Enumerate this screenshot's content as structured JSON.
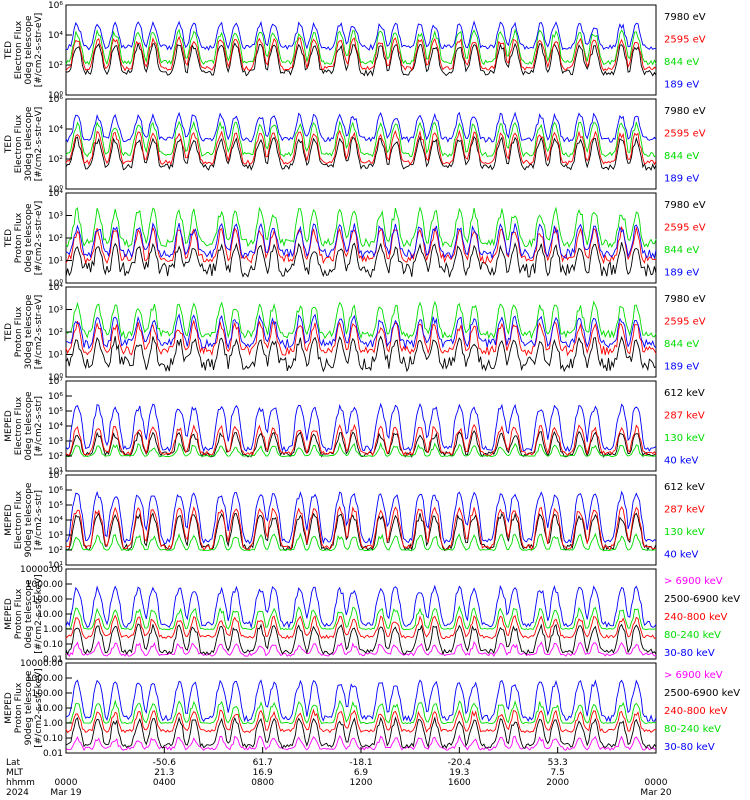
{
  "colors": {
    "black": "#000000",
    "red": "#ff0000",
    "green": "#00dd00",
    "blue": "#0000ff",
    "magenta": "#ff00ff"
  },
  "chart_data": {
    "type": "line",
    "panels": [
      {
        "ylabel_lines": [
          "TED",
          "Electron Flux",
          "0deg telescope",
          "[#/cm2-s-str-eV]"
        ],
        "scale": "log",
        "ylim": [
          1,
          1000000
        ],
        "ticks": [
          {
            "v": 1,
            "label": "10⁰"
          },
          {
            "v": 100,
            "label": "10²"
          },
          {
            "v": 10000,
            "label": "10⁴"
          },
          {
            "v": 1000000,
            "label": "10⁶"
          }
        ],
        "series": [
          {
            "name": "7980 eV",
            "color": "#000000",
            "base": 30,
            "peak_base": 2000,
            "noise": 1.6
          },
          {
            "name": "2595 eV",
            "color": "#ff0000",
            "base": 60,
            "peak_base": 5000,
            "noise": 1.4
          },
          {
            "name": "844 eV",
            "color": "#00dd00",
            "base": 150,
            "peak_base": 15000,
            "noise": 1.4
          },
          {
            "name": "189 eV",
            "color": "#0000ff",
            "base": 1500,
            "peak_base": 50000,
            "noise": 1.5
          }
        ]
      },
      {
        "ylabel_lines": [
          "TED",
          "Electron Flux",
          "30deg telescope",
          "[#/cm2-s-str-eV]"
        ],
        "scale": "log",
        "ylim": [
          1,
          1000000
        ],
        "ticks": [
          {
            "v": 1,
            "label": "10⁰"
          },
          {
            "v": 100,
            "label": "10²"
          },
          {
            "v": 10000,
            "label": "10⁴"
          },
          {
            "v": 1000000,
            "label": "10⁶"
          }
        ],
        "series": [
          {
            "name": "7980 eV",
            "color": "#000000",
            "base": 30,
            "peak_base": 2000,
            "noise": 1.6
          },
          {
            "name": "2595 eV",
            "color": "#ff0000",
            "base": 60,
            "peak_base": 5000,
            "noise": 1.4
          },
          {
            "name": "844 eV",
            "color": "#00dd00",
            "base": 200,
            "peak_base": 20000,
            "noise": 1.4
          },
          {
            "name": "189 eV",
            "color": "#0000ff",
            "base": 2000,
            "peak_base": 80000,
            "noise": 1.5
          }
        ]
      },
      {
        "ylabel_lines": [
          "TED",
          "Proton Flux",
          "0deg telescope",
          "[#/cm2-s-str-eV]"
        ],
        "scale": "log",
        "ylim": [
          1,
          10000
        ],
        "ticks": [
          {
            "v": 1,
            "label": "10⁰"
          },
          {
            "v": 10,
            "label": "10¹"
          },
          {
            "v": 100,
            "label": "10²"
          },
          {
            "v": 1000,
            "label": "10³"
          },
          {
            "v": 10000,
            "label": "10⁴"
          }
        ],
        "series": [
          {
            "name": "7980 eV",
            "color": "#000000",
            "base": 4,
            "peak_base": 40,
            "noise": 2.2
          },
          {
            "name": "2595 eV",
            "color": "#ff0000",
            "base": 12,
            "peak_base": 200,
            "noise": 1.6
          },
          {
            "name": "844 eV",
            "color": "#00dd00",
            "base": 60,
            "peak_base": 1500,
            "noise": 1.5
          },
          {
            "name": "189 eV",
            "color": "#0000ff",
            "base": 20,
            "peak_base": 300,
            "noise": 1.6
          }
        ]
      },
      {
        "ylabel_lines": [
          "TED",
          "Proton Flux",
          "30deg telescope",
          "[#/cm2-s-str-eV]"
        ],
        "scale": "log",
        "ylim": [
          1,
          10000
        ],
        "ticks": [
          {
            "v": 1,
            "label": "10⁰"
          },
          {
            "v": 10,
            "label": "10¹"
          },
          {
            "v": 100,
            "label": "10²"
          },
          {
            "v": 1000,
            "label": "10³"
          },
          {
            "v": 10000,
            "label": "10⁴"
          }
        ],
        "series": [
          {
            "name": "7980 eV",
            "color": "#000000",
            "base": 4,
            "peak_base": 40,
            "noise": 2.2
          },
          {
            "name": "2595 eV",
            "color": "#ff0000",
            "base": 15,
            "peak_base": 200,
            "noise": 1.6
          },
          {
            "name": "844 eV",
            "color": "#00dd00",
            "base": 80,
            "peak_base": 1500,
            "noise": 1.5
          },
          {
            "name": "189 eV",
            "color": "#0000ff",
            "base": 30,
            "peak_base": 400,
            "noise": 1.6
          }
        ]
      },
      {
        "ylabel_lines": [
          "MEPED",
          "Electron Flux",
          "0deg telescope",
          "[#/cm2-s-str]"
        ],
        "scale": "log",
        "ylim": [
          10,
          10000000
        ],
        "ticks": [
          {
            "v": 10,
            "label": "10¹"
          },
          {
            "v": 100,
            "label": "10²"
          },
          {
            "v": 1000,
            "label": "10³"
          },
          {
            "v": 10000,
            "label": "10⁴"
          },
          {
            "v": 100000,
            "label": "10⁵"
          },
          {
            "v": 1000000,
            "label": "10⁶"
          },
          {
            "v": 10000000,
            "label": "10⁷"
          }
        ],
        "series": [
          {
            "name": "612 keV",
            "color": "#000000",
            "base": 130,
            "peak_base": 3000,
            "noise": 1.5
          },
          {
            "name": "287 keV",
            "color": "#ff0000",
            "base": 150,
            "peak_base": 8000,
            "noise": 1.4
          },
          {
            "name": "130 keV",
            "color": "#00dd00",
            "base": 100,
            "peak_base": 400,
            "noise": 1.1
          },
          {
            "name": "40 keV",
            "color": "#0000ff",
            "base": 300,
            "peak_base": 200000,
            "noise": 1.5
          }
        ]
      },
      {
        "ylabel_lines": [
          "MEPED",
          "Electron Flux",
          "90deg telescope",
          "[#/cm2-s-str]"
        ],
        "scale": "log",
        "ylim": [
          10,
          10000000
        ],
        "ticks": [
          {
            "v": 10,
            "label": "10¹"
          },
          {
            "v": 100,
            "label": "10²"
          },
          {
            "v": 1000,
            "label": "10³"
          },
          {
            "v": 10000,
            "label": "10⁴"
          },
          {
            "v": 100000,
            "label": "10⁵"
          },
          {
            "v": 1000000,
            "label": "10⁶"
          },
          {
            "v": 10000000,
            "label": "10⁷"
          }
        ],
        "series": [
          {
            "name": "612 keV",
            "color": "#000000",
            "base": 150,
            "peak_base": 20000,
            "noise": 1.6
          },
          {
            "name": "287 keV",
            "color": "#ff0000",
            "base": 150,
            "peak_base": 50000,
            "noise": 1.5
          },
          {
            "name": "130 keV",
            "color": "#00dd00",
            "base": 100,
            "peak_base": 800,
            "noise": 1.1
          },
          {
            "name": "40 keV",
            "color": "#0000ff",
            "base": 400,
            "peak_base": 500000,
            "noise": 1.5
          }
        ]
      },
      {
        "ylabel_lines": [
          "MEPED",
          "Proton Flux",
          "0deg telescope",
          "[#/cm2-s-str-keV]"
        ],
        "scale": "log",
        "ylim": [
          0.01,
          10000
        ],
        "ticks": [
          {
            "v": 0.01,
            "label": "0.01"
          },
          {
            "v": 0.1,
            "label": "0.10"
          },
          {
            "v": 1,
            "label": "1.00"
          },
          {
            "v": 10,
            "label": "10.00"
          },
          {
            "v": 100,
            "label": "100.00"
          },
          {
            "v": 1000,
            "label": "1000.00"
          },
          {
            "v": 10000,
            "label": "10000.00"
          }
        ],
        "series": [
          {
            "name": "> 6900 keV",
            "color": "#ff00ff",
            "base": 0.02,
            "peak_base": 0.08,
            "noise": 1.3
          },
          {
            "name": "2500-6900 keV",
            "color": "#000000",
            "base": 0.03,
            "peak_base": 1.5,
            "noise": 1.5
          },
          {
            "name": "240-800 keV",
            "color": "#ff0000",
            "base": 0.3,
            "peak_base": 5,
            "noise": 1.3
          },
          {
            "name": "80-240 keV",
            "color": "#00dd00",
            "base": 1,
            "peak_base": 20,
            "noise": 1.1
          },
          {
            "name": "30-80 keV",
            "color": "#0000ff",
            "base": 2,
            "peak_base": 500,
            "noise": 1.6
          }
        ]
      },
      {
        "ylabel_lines": [
          "MEPED",
          "Proton Flux",
          "90deg telescope",
          "[#/cm2-s-str-keV]"
        ],
        "scale": "log",
        "ylim": [
          0.01,
          10000
        ],
        "ticks": [
          {
            "v": 0.01,
            "label": "0.01"
          },
          {
            "v": 0.1,
            "label": "0.10"
          },
          {
            "v": 1,
            "label": "1.00"
          },
          {
            "v": 10,
            "label": "10.00"
          },
          {
            "v": 100,
            "label": "100.00"
          },
          {
            "v": 1000,
            "label": "1000.00"
          },
          {
            "v": 10000,
            "label": "10000.00"
          }
        ],
        "series": [
          {
            "name": "> 6900 keV",
            "color": "#ff00ff",
            "base": 0.02,
            "peak_base": 0.08,
            "noise": 1.3
          },
          {
            "name": "2500-6900 keV",
            "color": "#000000",
            "base": 0.03,
            "peak_base": 1.5,
            "noise": 1.5
          },
          {
            "name": "240-800 keV",
            "color": "#ff0000",
            "base": 0.3,
            "peak_base": 5,
            "noise": 1.3
          },
          {
            "name": "80-240 keV",
            "color": "#00dd00",
            "base": 1,
            "peak_base": 20,
            "noise": 1.1
          },
          {
            "name": "30-80 keV",
            "color": "#0000ff",
            "base": 2,
            "peak_base": 500,
            "noise": 1.6
          }
        ]
      }
    ],
    "x_axis": {
      "range_hours": [
        0,
        24
      ],
      "row_labels": [
        "Lat",
        "MLT",
        "hhmm",
        "2024"
      ],
      "ticks": [
        {
          "h": 0,
          "lat": "",
          "mlt": "",
          "hhmm": "0000",
          "date": "Mar 19"
        },
        {
          "h": 4,
          "lat": "-50.6",
          "mlt": "21.3",
          "hhmm": "0400",
          "date": ""
        },
        {
          "h": 8,
          "lat": "61.7",
          "mlt": "16.9",
          "hhmm": "0800",
          "date": ""
        },
        {
          "h": 12,
          "lat": "-18.1",
          "mlt": "6.9",
          "hhmm": "1200",
          "date": ""
        },
        {
          "h": 16,
          "lat": "-20.4",
          "mlt": "19.3",
          "hhmm": "1600",
          "date": ""
        },
        {
          "h": 20,
          "lat": "53.3",
          "mlt": "7.5",
          "hhmm": "2000",
          "date": ""
        },
        {
          "h": 24,
          "lat": "",
          "mlt": "",
          "hhmm": "0000",
          "date": "Mar 20"
        }
      ]
    },
    "event_hours": [
      0.45,
      1.3,
      2.0,
      2.95,
      3.55,
      4.6,
      5.2,
      6.3,
      6.9,
      7.9,
      8.45,
      9.5,
      10.1,
      11.15,
      11.7,
      12.8,
      13.4,
      14.4,
      15.0,
      16.0,
      16.6,
      17.7,
      18.25,
      19.3,
      19.9,
      20.9,
      21.5,
      22.6,
      23.2
    ]
  }
}
